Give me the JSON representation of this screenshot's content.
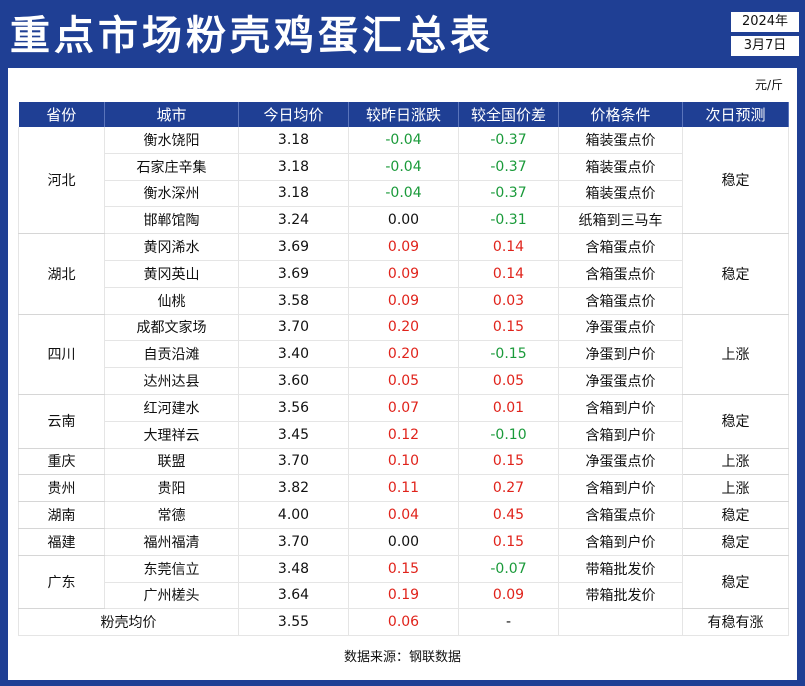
{
  "title": "重点市场粉壳鸡蛋汇总表",
  "date": {
    "year": "2024年",
    "day": "3月7日"
  },
  "unit": "元/斤",
  "headers": [
    "省份",
    "城市",
    "今日均价",
    "较昨日涨跌",
    "较全国价差",
    "价格条件",
    "次日预测"
  ],
  "groups": [
    {
      "province": "河北",
      "forecast": "稳定",
      "forecast_rows": 4,
      "rows": [
        {
          "city": "衡水饶阳",
          "price": "3.18",
          "change": "-0.04",
          "diff": "-0.37",
          "condition": "箱装蛋点价"
        },
        {
          "city": "石家庄辛集",
          "price": "3.18",
          "change": "-0.04",
          "diff": "-0.37",
          "condition": "箱装蛋点价"
        },
        {
          "city": "衡水深州",
          "price": "3.18",
          "change": "-0.04",
          "diff": "-0.37",
          "condition": "箱装蛋点价"
        },
        {
          "city": "邯郸馆陶",
          "price": "3.24",
          "change": "0.00",
          "diff": "-0.31",
          "condition": "纸箱到三马车"
        }
      ]
    },
    {
      "province": "湖北",
      "forecast": "稳定",
      "forecast_rows": 3,
      "rows": [
        {
          "city": "黄冈浠水",
          "price": "3.69",
          "change": "0.09",
          "diff": "0.14",
          "condition": "含箱蛋点价"
        },
        {
          "city": "黄冈英山",
          "price": "3.69",
          "change": "0.09",
          "diff": "0.14",
          "condition": "含箱蛋点价"
        },
        {
          "city": "仙桃",
          "price": "3.58",
          "change": "0.09",
          "diff": "0.03",
          "condition": "含箱蛋点价"
        }
      ]
    },
    {
      "province": "四川",
      "forecast": "上涨",
      "forecast_rows": 3,
      "rows": [
        {
          "city": "成都文家场",
          "price": "3.70",
          "change": "0.20",
          "diff": "0.15",
          "condition": "净蛋蛋点价"
        },
        {
          "city": "自贡沿滩",
          "price": "3.40",
          "change": "0.20",
          "diff": "-0.15",
          "condition": "净蛋到户价"
        },
        {
          "city": "达州达县",
          "price": "3.60",
          "change": "0.05",
          "diff": "0.05",
          "condition": "净蛋蛋点价"
        }
      ]
    },
    {
      "province": "云南",
      "forecast": "稳定",
      "forecast_rows": 2,
      "rows": [
        {
          "city": "红河建水",
          "price": "3.56",
          "change": "0.07",
          "diff": "0.01",
          "condition": "含箱到户价"
        },
        {
          "city": "大理祥云",
          "price": "3.45",
          "change": "0.12",
          "diff": "-0.10",
          "condition": "含箱到户价"
        }
      ]
    },
    {
      "province": "重庆",
      "forecast": "上涨",
      "forecast_rows": 1,
      "rows": [
        {
          "city": "联盟",
          "price": "3.70",
          "change": "0.10",
          "diff": "0.15",
          "condition": "净蛋蛋点价"
        }
      ]
    },
    {
      "province": "贵州",
      "forecast": "上涨",
      "forecast_rows": 1,
      "rows": [
        {
          "city": "贵阳",
          "price": "3.82",
          "change": "0.11",
          "diff": "0.27",
          "condition": "含箱到户价"
        }
      ]
    },
    {
      "province": "湖南",
      "forecast": "稳定",
      "forecast_rows": 1,
      "rows": [
        {
          "city": "常德",
          "price": "4.00",
          "change": "0.04",
          "diff": "0.45",
          "condition": "含箱蛋点价"
        }
      ]
    },
    {
      "province": "福建",
      "forecast": "稳定",
      "forecast_rows": 1,
      "rows": [
        {
          "city": "福州福清",
          "price": "3.70",
          "change": "0.00",
          "diff": "0.15",
          "condition": "含箱到户价"
        }
      ]
    },
    {
      "province": "广东",
      "forecast": "稳定",
      "forecast_rows": 2,
      "rows": [
        {
          "city": "东莞信立",
          "price": "3.48",
          "change": "0.15",
          "diff": "-0.07",
          "condition": "带箱批发价"
        },
        {
          "city": "广州槎头",
          "price": "3.64",
          "change": "0.19",
          "diff": "0.09",
          "condition": "带箱批发价"
        }
      ]
    }
  ],
  "summary": {
    "label": "粉壳均价",
    "price": "3.55",
    "change": "0.06",
    "diff": "-",
    "condition": "",
    "forecast": "有稳有涨"
  },
  "source": "数据来源：钢联数据",
  "colors": {
    "header_bg": "#1f3f94",
    "up": "#e0231b",
    "down": "#1a9a3a",
    "flat": "#111111"
  }
}
